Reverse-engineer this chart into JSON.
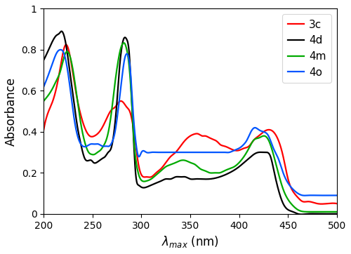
{
  "title": "",
  "xlabel": "$\\lambda_{max}$ (nm)",
  "ylabel": "Absorbance",
  "xlim": [
    200,
    500
  ],
  "ylim": [
    0,
    1.0
  ],
  "legend_labels": [
    "3c",
    "4d",
    "4m",
    "4o"
  ],
  "colors": {
    "3c": "#ff0000",
    "4d": "#000000",
    "4m": "#00aa00",
    "4o": "#0055ff"
  },
  "linewidth": 1.6,
  "curves": {
    "3c": {
      "x": [
        200,
        205,
        210,
        215,
        218,
        221,
        224,
        228,
        232,
        237,
        242,
        247,
        252,
        257,
        262,
        267,
        270,
        273,
        276,
        279,
        282,
        285,
        288,
        291,
        294,
        297,
        300,
        305,
        310,
        315,
        320,
        325,
        330,
        335,
        340,
        345,
        350,
        355,
        358,
        362,
        365,
        370,
        375,
        378,
        380,
        385,
        390,
        395,
        400,
        405,
        410,
        415,
        420,
        425,
        430,
        435,
        440,
        445,
        450,
        455,
        460,
        465,
        470,
        480,
        490,
        500
      ],
      "y": [
        0.41,
        0.5,
        0.56,
        0.66,
        0.74,
        0.81,
        0.82,
        0.74,
        0.62,
        0.5,
        0.42,
        0.38,
        0.38,
        0.4,
        0.44,
        0.49,
        0.51,
        0.52,
        0.54,
        0.55,
        0.54,
        0.52,
        0.5,
        0.44,
        0.34,
        0.24,
        0.19,
        0.18,
        0.18,
        0.2,
        0.22,
        0.25,
        0.28,
        0.3,
        0.33,
        0.36,
        0.38,
        0.39,
        0.39,
        0.38,
        0.38,
        0.37,
        0.36,
        0.35,
        0.34,
        0.33,
        0.32,
        0.31,
        0.31,
        0.32,
        0.33,
        0.36,
        0.38,
        0.4,
        0.41,
        0.4,
        0.36,
        0.28,
        0.17,
        0.11,
        0.08,
        0.06,
        0.06,
        0.05,
        0.05,
        0.05
      ]
    },
    "4d": {
      "x": [
        200,
        205,
        210,
        213,
        216,
        218,
        220,
        223,
        226,
        230,
        234,
        238,
        242,
        246,
        249,
        251,
        254,
        257,
        260,
        263,
        266,
        269,
        272,
        275,
        277,
        279,
        281,
        283,
        285,
        288,
        290,
        292,
        294,
        297,
        300,
        305,
        310,
        315,
        320,
        325,
        330,
        335,
        340,
        345,
        350,
        355,
        360,
        370,
        380,
        390,
        400,
        405,
        410,
        415,
        420,
        425,
        428,
        432,
        436,
        440,
        445,
        450,
        455,
        460,
        470,
        480,
        490,
        500
      ],
      "y": [
        0.75,
        0.8,
        0.85,
        0.87,
        0.88,
        0.89,
        0.88,
        0.82,
        0.72,
        0.58,
        0.44,
        0.34,
        0.27,
        0.26,
        0.26,
        0.25,
        0.25,
        0.26,
        0.27,
        0.28,
        0.3,
        0.32,
        0.4,
        0.55,
        0.68,
        0.78,
        0.84,
        0.86,
        0.85,
        0.75,
        0.55,
        0.36,
        0.2,
        0.14,
        0.13,
        0.13,
        0.14,
        0.15,
        0.16,
        0.17,
        0.17,
        0.18,
        0.18,
        0.18,
        0.17,
        0.17,
        0.17,
        0.17,
        0.18,
        0.2,
        0.23,
        0.25,
        0.27,
        0.29,
        0.3,
        0.3,
        0.3,
        0.28,
        0.2,
        0.12,
        0.05,
        0.02,
        0.01,
        0.0,
        0.0,
        0.0,
        0.0,
        0.0
      ]
    },
    "4m": {
      "x": [
        200,
        205,
        210,
        213,
        216,
        219,
        222,
        226,
        230,
        234,
        238,
        242,
        246,
        249,
        252,
        255,
        258,
        261,
        264,
        267,
        270,
        273,
        276,
        279,
        281,
        283,
        285,
        287,
        290,
        292,
        295,
        298,
        301,
        305,
        310,
        315,
        320,
        325,
        330,
        335,
        340,
        345,
        350,
        355,
        360,
        365,
        370,
        375,
        380,
        385,
        390,
        395,
        400,
        405,
        410,
        415,
        420,
        425,
        430,
        435,
        440,
        445,
        450,
        455,
        460,
        470,
        480,
        490,
        500
      ],
      "y": [
        0.55,
        0.58,
        0.62,
        0.65,
        0.68,
        0.73,
        0.78,
        0.78,
        0.7,
        0.57,
        0.44,
        0.35,
        0.3,
        0.29,
        0.29,
        0.3,
        0.31,
        0.33,
        0.36,
        0.42,
        0.52,
        0.64,
        0.74,
        0.81,
        0.83,
        0.83,
        0.8,
        0.74,
        0.55,
        0.38,
        0.24,
        0.18,
        0.16,
        0.16,
        0.17,
        0.19,
        0.21,
        0.23,
        0.24,
        0.25,
        0.26,
        0.26,
        0.25,
        0.24,
        0.22,
        0.21,
        0.2,
        0.2,
        0.2,
        0.21,
        0.22,
        0.23,
        0.25,
        0.28,
        0.32,
        0.36,
        0.37,
        0.38,
        0.36,
        0.29,
        0.2,
        0.12,
        0.07,
        0.04,
        0.02,
        0.01,
        0.01,
        0.01,
        0.01
      ]
    },
    "4o": {
      "x": [
        200,
        205,
        208,
        211,
        214,
        217,
        220,
        223,
        226,
        229,
        232,
        236,
        240,
        244,
        248,
        252,
        256,
        260,
        264,
        267,
        270,
        273,
        276,
        279,
        281,
        283,
        285,
        287,
        289,
        291,
        294,
        297,
        300,
        305,
        310,
        315,
        320,
        325,
        330,
        335,
        340,
        345,
        350,
        355,
        360,
        365,
        370,
        375,
        380,
        385,
        390,
        395,
        400,
        405,
        408,
        412,
        416,
        420,
        425,
        430,
        435,
        440,
        445,
        450,
        455,
        460,
        465,
        470,
        480,
        490,
        500
      ],
      "y": [
        0.62,
        0.68,
        0.72,
        0.76,
        0.79,
        0.8,
        0.79,
        0.74,
        0.65,
        0.54,
        0.44,
        0.36,
        0.33,
        0.33,
        0.34,
        0.34,
        0.34,
        0.33,
        0.33,
        0.33,
        0.35,
        0.4,
        0.5,
        0.62,
        0.7,
        0.76,
        0.78,
        0.76,
        0.68,
        0.53,
        0.36,
        0.28,
        0.3,
        0.3,
        0.3,
        0.3,
        0.3,
        0.3,
        0.3,
        0.3,
        0.3,
        0.3,
        0.3,
        0.3,
        0.3,
        0.3,
        0.3,
        0.3,
        0.3,
        0.3,
        0.3,
        0.31,
        0.32,
        0.34,
        0.36,
        0.4,
        0.42,
        0.41,
        0.4,
        0.38,
        0.32,
        0.27,
        0.2,
        0.15,
        0.12,
        0.1,
        0.09,
        0.09,
        0.09,
        0.09,
        0.09
      ]
    }
  },
  "xticks": [
    200,
    250,
    300,
    350,
    400,
    450,
    500
  ],
  "yticks": [
    0,
    0.2,
    0.4,
    0.6,
    0.8,
    1
  ],
  "figsize": [
    5.0,
    3.62
  ],
  "dpi": 100
}
